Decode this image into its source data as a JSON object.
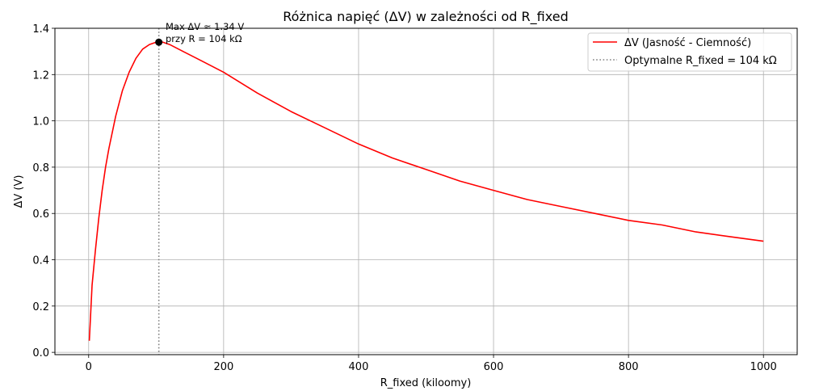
{
  "chart_data": {
    "type": "line",
    "title": "Różnica napięć (ΔV) w zależności od R_fixed",
    "xlabel": "R_fixed (kiloomy)",
    "ylabel": "ΔV (V)",
    "xlim": [
      -50,
      1050
    ],
    "ylim": [
      -0.01,
      1.4
    ],
    "xticks": [
      0,
      200,
      400,
      600,
      800,
      1000
    ],
    "yticks": [
      0.0,
      0.2,
      0.4,
      0.6,
      0.8,
      1.0,
      1.2,
      1.4
    ],
    "xtick_labels": [
      "0",
      "200",
      "400",
      "600",
      "800",
      "1000"
    ],
    "ytick_labels": [
      "0.0",
      "0.2",
      "0.4",
      "0.6",
      "0.8",
      "1.0",
      "1.2",
      "1.4"
    ],
    "grid": true,
    "legend_position": "top-right",
    "series": [
      {
        "name": "ΔV (Jasność - Ciemność)",
        "color": "#ff0000",
        "style": "solid",
        "x": [
          1,
          5,
          10,
          15,
          20,
          25,
          30,
          40,
          50,
          60,
          70,
          80,
          90,
          100,
          104,
          110,
          120,
          140,
          160,
          180,
          200,
          250,
          300,
          350,
          400,
          450,
          500,
          550,
          600,
          650,
          700,
          750,
          800,
          850,
          900,
          950,
          1000
        ],
        "y": [
          0.05,
          0.29,
          0.44,
          0.58,
          0.7,
          0.8,
          0.88,
          1.02,
          1.13,
          1.21,
          1.27,
          1.31,
          1.33,
          1.34,
          1.34,
          1.34,
          1.33,
          1.3,
          1.27,
          1.24,
          1.21,
          1.12,
          1.04,
          0.97,
          0.9,
          0.84,
          0.79,
          0.74,
          0.7,
          0.66,
          0.63,
          0.6,
          0.57,
          0.55,
          0.52,
          0.5,
          0.48
        ]
      },
      {
        "name": "Optymalne R_fixed = 104 kΩ",
        "color": "#808080",
        "style": "dotted",
        "vertical_line_x": 104
      }
    ],
    "max_point": {
      "x": 104,
      "y": 1.34,
      "color": "#000000"
    },
    "annotation": {
      "line1": "Max ΔV ≈ 1.34 V",
      "line2": "przy R = 104 kΩ"
    }
  }
}
